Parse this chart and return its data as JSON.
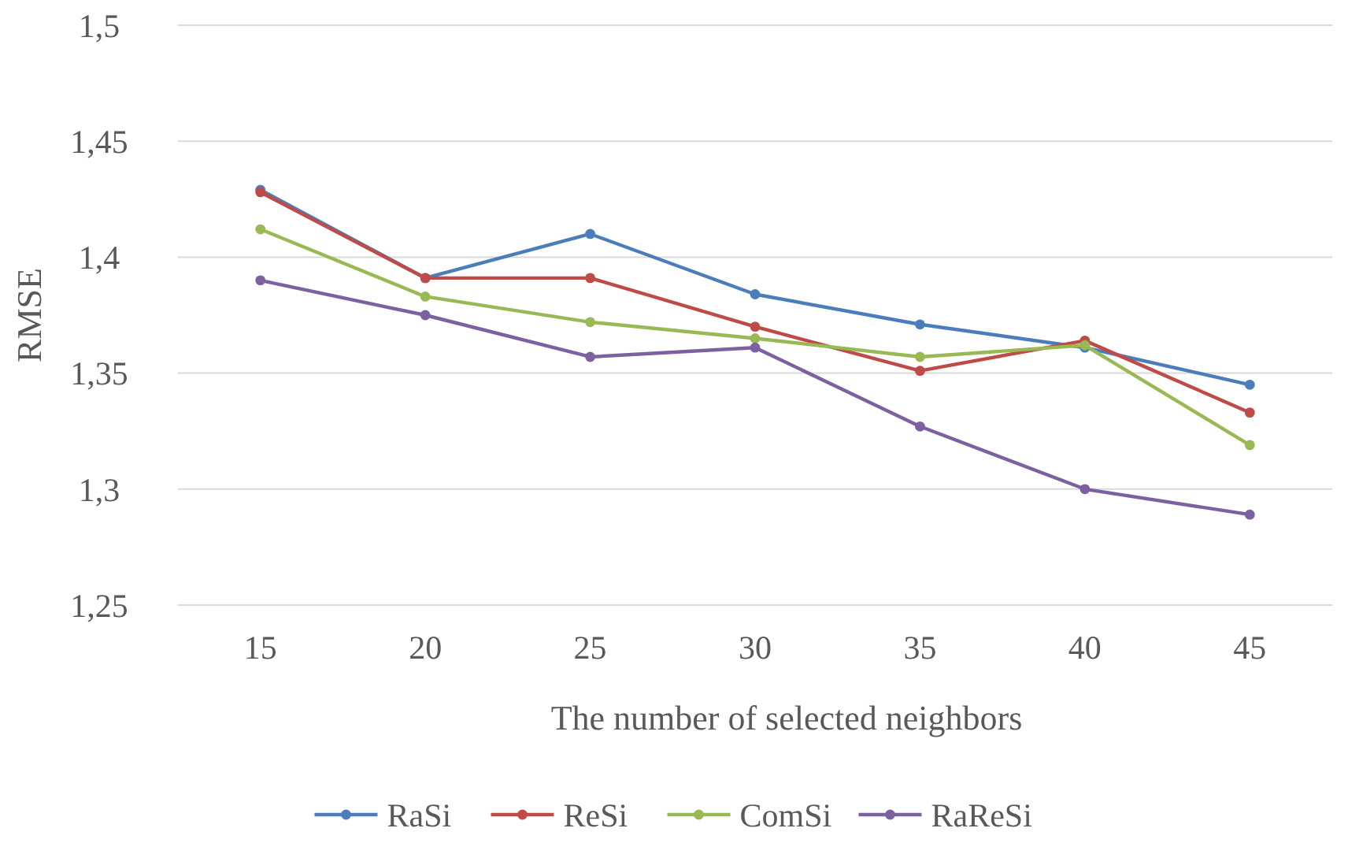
{
  "chart_data": {
    "type": "line",
    "xlabel": "The number of selected neighbors",
    "ylabel": "RMSE",
    "categories": [
      "15",
      "20",
      "25",
      "30",
      "35",
      "40",
      "45"
    ],
    "series": [
      {
        "name": "RaSi",
        "color": "#4a7ebb",
        "values": [
          1.429,
          1.391,
          1.41,
          1.384,
          1.371,
          1.361,
          1.345
        ]
      },
      {
        "name": "ReSi",
        "color": "#be4b48",
        "values": [
          1.428,
          1.391,
          1.391,
          1.37,
          1.351,
          1.364,
          1.333
        ]
      },
      {
        "name": "ComSi",
        "color": "#98b954",
        "values": [
          1.412,
          1.383,
          1.372,
          1.365,
          1.357,
          1.362,
          1.319
        ]
      },
      {
        "name": "RaReSi",
        "color": "#7d60a0",
        "values": [
          1.39,
          1.375,
          1.357,
          1.361,
          1.327,
          1.3,
          1.289
        ]
      }
    ],
    "ylim": [
      1.25,
      1.5
    ],
    "yticks": [
      {
        "value": 1.25,
        "label": "1,25"
      },
      {
        "value": 1.3,
        "label": "1,3"
      },
      {
        "value": 1.35,
        "label": "1,35"
      },
      {
        "value": 1.4,
        "label": "1,4"
      },
      {
        "value": 1.45,
        "label": "1,45"
      },
      {
        "value": 1.5,
        "label": "1,5"
      }
    ],
    "grid": "y",
    "legend": "bottom",
    "marker": "circle",
    "line_style": "solid"
  }
}
